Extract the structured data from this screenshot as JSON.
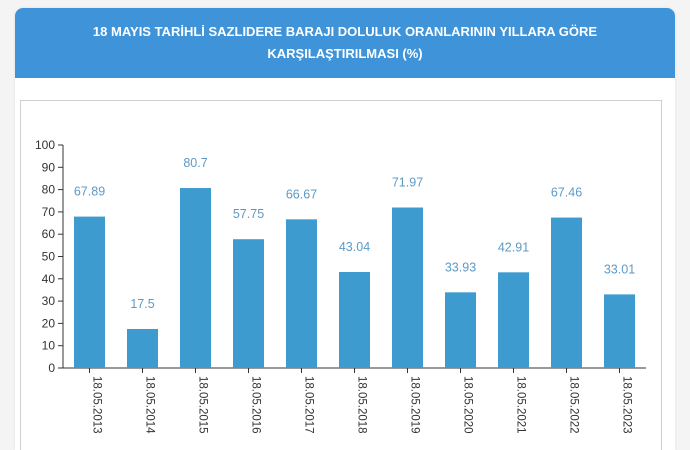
{
  "header": {
    "title": "18 MAYIS TARİHLİ SAZLIDERE BARAJI DOLULUK ORANLARININ YILLARA GÖRE KARŞILAŞTIRILMASI (%)"
  },
  "colors": {
    "header": "#3f94d9",
    "bar": "#3d9bd0",
    "label": "#5c9ac6"
  },
  "chart_data": {
    "type": "bar",
    "title": "18 MAYIS TARİHLİ SAZLIDERE BARAJI DOLULUK ORANLARININ YILLARA GÖRE KARŞILAŞTIRILMASI (%)",
    "categories": [
      "18.05.2013",
      "18.05.2014",
      "18.05.2015",
      "18.05.2016",
      "18.05.2017",
      "18.05.2018",
      "18.05.2019",
      "18.05.2020",
      "18.05.2021",
      "18.05.2022",
      "18.05.2023"
    ],
    "values": [
      67.89,
      17.5,
      80.7,
      57.75,
      66.67,
      43.04,
      71.97,
      33.93,
      42.91,
      67.46,
      33.01
    ],
    "data_labels": [
      "67.89",
      "17.5",
      "80.7",
      "57.75",
      "66.67",
      "43.04",
      "71.97",
      "33.93",
      "42.91",
      "67.46",
      "33.01"
    ],
    "ylim": [
      0,
      100
    ],
    "yticks": [
      "0",
      "10",
      "20",
      "30",
      "40",
      "50",
      "60",
      "70",
      "80",
      "90",
      "100"
    ],
    "grid": false,
    "legend": "none"
  }
}
